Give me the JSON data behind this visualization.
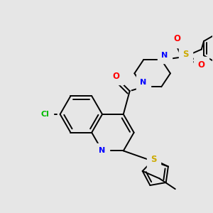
{
  "background_color": "#e6e6e6",
  "bond_color": "#000000",
  "atom_colors": {
    "N": "#0000ff",
    "O": "#ff0000",
    "S": "#ccaa00",
    "Cl": "#00bb00",
    "C": "#000000"
  }
}
